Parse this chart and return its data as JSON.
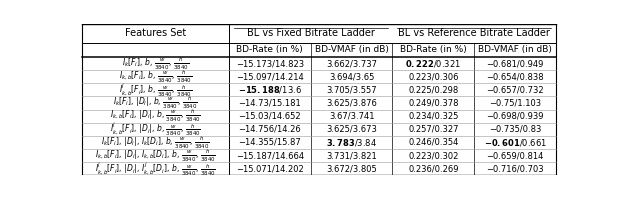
{
  "col_headers": [
    "Features Set",
    "BL vs Fixed Bitrate Ladder",
    "BL vs Reference Bitrate Ladder"
  ],
  "sub_headers": [
    "",
    "BD-Rate (in %)",
    "BD-VMAF (in dB)",
    "BD-Rate (in %)",
    "BD-VMAF (in dB)"
  ],
  "rows": [
    {
      "feature": "$I_k[F_i]$, $b$, $\\frac{w}{3840}$, $\\frac{h}{3840}$",
      "fixed_bdrate": "−15.173/14.823",
      "fixed_bdvmaf": "3.662/3.737",
      "ref_bdrate": "0.222/0.321",
      "ref_bdvmaf": "−0.681/0.949",
      "bold_ref_bdrate_first": true,
      "bold_ref_bdvmaf_first": false,
      "bold_fixed_bdrate_first": false,
      "bold_fixed_bdvmaf_first": false
    },
    {
      "feature": "$I_{k,b}[F_i]$, $b$, $\\frac{w}{3840}$, $\\frac{h}{3840}$",
      "fixed_bdrate": "−15.097/14.214",
      "fixed_bdvmaf": "3.694/3.65",
      "ref_bdrate": "0.223/0.306",
      "ref_bdvmaf": "−0.654/0.838",
      "bold_ref_bdrate_first": false,
      "bold_ref_bdvmaf_first": false,
      "bold_fixed_bdrate_first": false,
      "bold_fixed_bdvmaf_first": false
    },
    {
      "feature": "$I^j_{k,b}[F_i]$, $b$, $\\frac{w}{3840}$, $\\frac{h}{3840}$",
      "fixed_bdrate": "−15.188/13.6",
      "fixed_bdvmaf": "3.705/3.557",
      "ref_bdrate": "0.225/0.298",
      "ref_bdvmaf": "−0.657/0.732",
      "bold_ref_bdrate_first": false,
      "bold_ref_bdvmaf_first": false,
      "bold_fixed_bdrate_first": true,
      "bold_fixed_bdvmaf_first": false
    },
    {
      "feature": "$I_k[F_i]$, $|D_i|$, $b$, $\\frac{w}{3840}$, $\\frac{h}{3840}$",
      "fixed_bdrate": "−14.73/15.181",
      "fixed_bdvmaf": "3.625/3.876",
      "ref_bdrate": "0.249/0.378",
      "ref_bdvmaf": "−0.75/1.103",
      "bold_ref_bdrate_first": false,
      "bold_ref_bdvmaf_first": false,
      "bold_fixed_bdrate_first": false,
      "bold_fixed_bdvmaf_first": false
    },
    {
      "feature": "$I_{k,b}[F_i]$, $|D_i|$, $b$, $\\frac{w}{3840}$, $\\frac{h}{3840}$",
      "fixed_bdrate": "−15.03/14.652",
      "fixed_bdvmaf": "3.67/3.741",
      "ref_bdrate": "0.234/0.325",
      "ref_bdvmaf": "−0.698/0.939",
      "bold_ref_bdrate_first": false,
      "bold_ref_bdvmaf_first": false,
      "bold_fixed_bdrate_first": false,
      "bold_fixed_bdvmaf_first": false
    },
    {
      "feature": "$I^j_{k,b}[F_i]$, $|D_i|$, $b$, $\\frac{w}{3840}$, $\\frac{h}{3840}$",
      "fixed_bdrate": "−14.756/14.26",
      "fixed_bdvmaf": "3.625/3.673",
      "ref_bdrate": "0.257/0.327",
      "ref_bdvmaf": "−0.735/0.83",
      "bold_ref_bdrate_first": false,
      "bold_ref_bdvmaf_first": false,
      "bold_fixed_bdrate_first": false,
      "bold_fixed_bdvmaf_first": false
    },
    {
      "feature": "$I_k[F_i]$, $|D_i|$, $I_k[D_i]$, $b$, $\\frac{w}{3840}$, $\\frac{h}{3840}$",
      "fixed_bdrate": "−14.355/15.87",
      "fixed_bdvmaf": "3.783/3.84",
      "ref_bdrate": "0.246/0.354",
      "ref_bdvmaf": "−0.601/0.661",
      "bold_ref_bdrate_first": false,
      "bold_ref_bdvmaf_first": true,
      "bold_fixed_bdrate_first": false,
      "bold_fixed_bdvmaf_first": true
    },
    {
      "feature": "$I_{k,b}[F_i]$, $|D_i|$, $I_{k,b}[D_i]$, $b$, $\\frac{w}{3840}$, $\\frac{h}{3840}$",
      "fixed_bdrate": "−15.187/14.664",
      "fixed_bdvmaf": "3.731/3.821",
      "ref_bdrate": "0.223/0.302",
      "ref_bdvmaf": "−0.659/0.814",
      "bold_ref_bdrate_first": false,
      "bold_ref_bdvmaf_first": false,
      "bold_fixed_bdrate_first": false,
      "bold_fixed_bdvmaf_first": false
    },
    {
      "feature": "$I^j_{k,b}[F_i]$, $|D_i|$, $I^j_{k,b}[D_i]$, $b$, $\\frac{w}{3840}$, $\\frac{h}{3840}$",
      "fixed_bdrate": "−15.071/14.202",
      "fixed_bdvmaf": "3.672/3.805",
      "ref_bdrate": "0.236/0.269",
      "ref_bdvmaf": "−0.716/0.703",
      "bold_ref_bdrate_first": false,
      "bold_ref_bdvmaf_first": false,
      "bold_fixed_bdrate_first": false,
      "bold_fixed_bdvmaf_first": false
    }
  ],
  "background_color": "#ffffff"
}
